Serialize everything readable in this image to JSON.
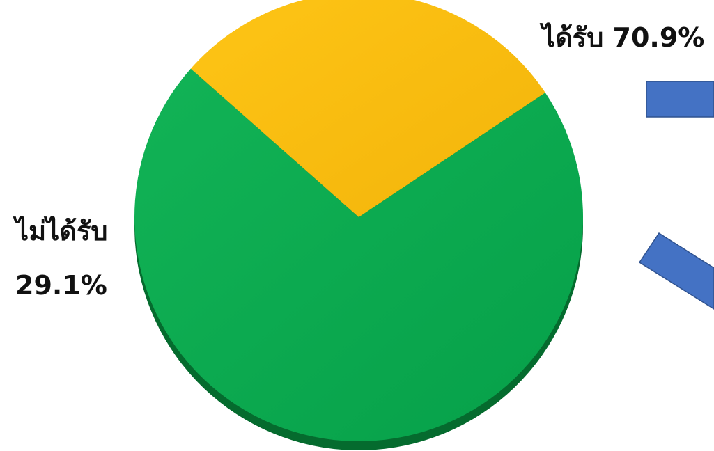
{
  "chart_data": {
    "type": "pie",
    "title": "",
    "slices": [
      {
        "label": "ไม่ได้รับ",
        "value": 29.1,
        "display": "29.1%",
        "color": "#F5B70F"
      },
      {
        "label": "ได้รับ",
        "value": 70.9,
        "display": "70.9%",
        "color": "#0BAA4E"
      }
    ]
  },
  "labels": {
    "received": "ได้รับ 70.9%",
    "not_received_name": "ไม่ได้รับ",
    "not_received_value": "29.1%"
  },
  "colors": {
    "received": "#0BAA4E",
    "not_received": "#F5B70F",
    "arrow": "#4472C4"
  }
}
